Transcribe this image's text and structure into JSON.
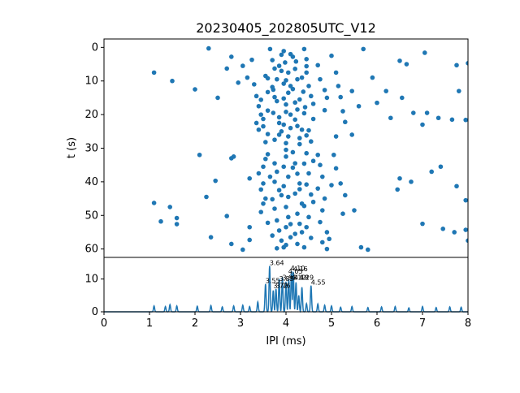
{
  "chart_data": [
    {
      "type": "scatter",
      "title": "20230405_202805UTC_V12",
      "xlabel": "",
      "ylabel": "t (s)",
      "xlim": [
        0,
        8
      ],
      "ylim": [
        62.5,
        -2.5
      ],
      "y_inverted": true,
      "yticks": [
        "0",
        "10",
        "20",
        "30",
        "40",
        "50",
        "60"
      ],
      "color": "#1f77b4",
      "points": [
        [
          1.1,
          7.5
        ],
        [
          1.5,
          10
        ],
        [
          2.0,
          12.5
        ],
        [
          2.3,
          0.3
        ],
        [
          2.5,
          15
        ],
        [
          2.7,
          6.3
        ],
        [
          2.8,
          2.8
        ],
        [
          2.95,
          10.5
        ],
        [
          3.05,
          5.5
        ],
        [
          3.15,
          9
        ],
        [
          3.25,
          3.7
        ],
        [
          3.3,
          11
        ],
        [
          3.35,
          14.5
        ],
        [
          3.4,
          17.5
        ],
        [
          3.45,
          20
        ],
        [
          3.35,
          22.5
        ],
        [
          3.4,
          24.5
        ],
        [
          3.5,
          21.3
        ],
        [
          3.55,
          8.5
        ],
        [
          3.6,
          13.3
        ],
        [
          3.7,
          3.8
        ],
        [
          3.75,
          6.3
        ],
        [
          3.8,
          9.5
        ],
        [
          3.72,
          12.6
        ],
        [
          3.8,
          16
        ],
        [
          3.72,
          19.5
        ],
        [
          3.85,
          22.5
        ],
        [
          3.9,
          25
        ],
        [
          3.75,
          27.5
        ],
        [
          3.95,
          1.1
        ],
        [
          3.98,
          4.5
        ],
        [
          4.05,
          7.5
        ],
        [
          3.95,
          10.8
        ],
        [
          4.05,
          13.5
        ],
        [
          4.0,
          17
        ],
        [
          4.1,
          20
        ],
        [
          3.95,
          23
        ],
        [
          4.05,
          26.5
        ],
        [
          4.15,
          2.8
        ],
        [
          4.2,
          6.4
        ],
        [
          4.25,
          9.5
        ],
        [
          4.15,
          12.4
        ],
        [
          4.3,
          15.5
        ],
        [
          4.25,
          18.5
        ],
        [
          4.2,
          21.5
        ],
        [
          4.35,
          24.5
        ],
        [
          4.3,
          27
        ],
        [
          4.4,
          0.5
        ],
        [
          4.45,
          3.5
        ],
        [
          4.45,
          7.5
        ],
        [
          4.5,
          11.5
        ],
        [
          4.55,
          14.5
        ],
        [
          4.42,
          17.8
        ],
        [
          4.6,
          21.3
        ],
        [
          4.5,
          24.7
        ],
        [
          4.55,
          28
        ],
        [
          4.7,
          5.3
        ],
        [
          4.75,
          9.5
        ],
        [
          4.85,
          12.7
        ],
        [
          4.9,
          15
        ],
        [
          4.85,
          18.7
        ],
        [
          5.0,
          2.5
        ],
        [
          5.1,
          7.5
        ],
        [
          5.15,
          11.5
        ],
        [
          5.2,
          14.8
        ],
        [
          5.25,
          19
        ],
        [
          5.3,
          22.2
        ],
        [
          5.1,
          26.5
        ],
        [
          5.45,
          13
        ],
        [
          5.6,
          17.5
        ],
        [
          5.45,
          26
        ],
        [
          5.7,
          0.5
        ],
        [
          5.9,
          9
        ],
        [
          6.0,
          16.5
        ],
        [
          6.2,
          13
        ],
        [
          6.3,
          21
        ],
        [
          6.5,
          4
        ],
        [
          6.55,
          15
        ],
        [
          6.65,
          5
        ],
        [
          6.8,
          19.5
        ],
        [
          7.0,
          23
        ],
        [
          7.05,
          1.6
        ],
        [
          7.1,
          19.5
        ],
        [
          7.35,
          21
        ],
        [
          7.65,
          21.5
        ],
        [
          7.75,
          5.3
        ],
        [
          7.8,
          13
        ],
        [
          7.95,
          21.6
        ],
        [
          8.0,
          4.7
        ],
        [
          3.65,
          0.5
        ],
        [
          3.9,
          2.2
        ],
        [
          4.1,
          2.0
        ],
        [
          3.85,
          5.5
        ],
        [
          4.22,
          4.2
        ],
        [
          3.6,
          9.2
        ],
        [
          4.0,
          9.8
        ],
        [
          4.35,
          9.0
        ],
        [
          3.7,
          11.8
        ],
        [
          4.1,
          11.5
        ],
        [
          4.38,
          13.2
        ],
        [
          3.45,
          15.6
        ],
        [
          3.95,
          15.2
        ],
        [
          4.2,
          16.4
        ],
        [
          4.6,
          16.8
        ],
        [
          3.6,
          18.8
        ],
        [
          4.0,
          19.2
        ],
        [
          4.4,
          19.6
        ],
        [
          3.5,
          23.5
        ],
        [
          3.85,
          20.8
        ],
        [
          4.25,
          23.4
        ],
        [
          3.6,
          25.8
        ],
        [
          4.45,
          26.2
        ],
        [
          4.0,
          28.5
        ],
        [
          3.55,
          28.2
        ],
        [
          4.3,
          28.8
        ],
        [
          3.9,
          7.0
        ],
        [
          4.45,
          5.6
        ],
        [
          3.75,
          14.8
        ],
        [
          4.1,
          24.0
        ],
        [
          3.85,
          26.0
        ],
        [
          2.1,
          32
        ],
        [
          2.8,
          33
        ],
        [
          2.85,
          32.5
        ],
        [
          2.45,
          39.7
        ],
        [
          3.2,
          39
        ],
        [
          2.25,
          44.5
        ],
        [
          1.1,
          46.3
        ],
        [
          1.25,
          51.8
        ],
        [
          1.45,
          47.5
        ],
        [
          1.6,
          50.8
        ],
        [
          1.6,
          52.6
        ],
        [
          2.35,
          56.5
        ],
        [
          2.7,
          50.2
        ],
        [
          2.8,
          58.5
        ],
        [
          3.05,
          60.2
        ],
        [
          3.2,
          57.3
        ],
        [
          3.2,
          53.5
        ],
        [
          3.45,
          49
        ],
        [
          3.4,
          37.5
        ],
        [
          3.5,
          35.5
        ],
        [
          3.5,
          40.5
        ],
        [
          3.45,
          42.3
        ],
        [
          3.55,
          45
        ],
        [
          3.5,
          46.5
        ],
        [
          3.6,
          31.8
        ],
        [
          3.75,
          34.5
        ],
        [
          3.8,
          37
        ],
        [
          3.75,
          40
        ],
        [
          3.85,
          42.5
        ],
        [
          3.7,
          45.2
        ],
        [
          3.75,
          48
        ],
        [
          3.8,
          51.5
        ],
        [
          3.85,
          54.5
        ],
        [
          3.9,
          57.5
        ],
        [
          3.8,
          59.8
        ],
        [
          4.0,
          32.5
        ],
        [
          3.95,
          35.5
        ],
        [
          4.05,
          38.5
        ],
        [
          3.95,
          41.3
        ],
        [
          4.05,
          44.5
        ],
        [
          4.0,
          47.5
        ],
        [
          4.05,
          50.5
        ],
        [
          4.0,
          53.5
        ],
        [
          4.1,
          56.5
        ],
        [
          3.95,
          59.5
        ],
        [
          4.15,
          31.2
        ],
        [
          4.2,
          34.5
        ],
        [
          4.25,
          37.6
        ],
        [
          4.3,
          40.5
        ],
        [
          4.2,
          43.5
        ],
        [
          4.35,
          46.5
        ],
        [
          4.25,
          49.5
        ],
        [
          4.3,
          52.5
        ],
        [
          4.2,
          55.5
        ],
        [
          4.25,
          58.5
        ],
        [
          4.45,
          31.5
        ],
        [
          4.4,
          34.6
        ],
        [
          4.5,
          37.5
        ],
        [
          4.45,
          40.8
        ],
        [
          4.55,
          43.8
        ],
        [
          4.4,
          47.2
        ],
        [
          4.5,
          50.5
        ],
        [
          4.45,
          53.5
        ],
        [
          4.55,
          56.7
        ],
        [
          4.4,
          59.5
        ],
        [
          4.7,
          32
        ],
        [
          4.75,
          35
        ],
        [
          4.8,
          38.5
        ],
        [
          4.7,
          42
        ],
        [
          4.85,
          45
        ],
        [
          4.8,
          48.5
        ],
        [
          4.75,
          52
        ],
        [
          4.9,
          55
        ],
        [
          4.8,
          58
        ],
        [
          4.95,
          57
        ],
        [
          5.0,
          41
        ],
        [
          5.05,
          32
        ],
        [
          5.1,
          36
        ],
        [
          5.2,
          40.5
        ],
        [
          5.3,
          44
        ],
        [
          5.25,
          49.5
        ],
        [
          4.9,
          60
        ],
        [
          5.5,
          48.5
        ],
        [
          5.65,
          59.5
        ],
        [
          5.8,
          60.2
        ],
        [
          6.45,
          42.3
        ],
        [
          6.5,
          39
        ],
        [
          6.75,
          40
        ],
        [
          7.0,
          52.5
        ],
        [
          7.2,
          37
        ],
        [
          7.4,
          35.5
        ],
        [
          7.45,
          54
        ],
        [
          7.7,
          55
        ],
        [
          7.75,
          41.3
        ],
        [
          7.95,
          45.5
        ],
        [
          8.0,
          57.5
        ],
        [
          7.95,
          54.3
        ],
        [
          3.6,
          52.2
        ],
        [
          4.1,
          52.6
        ],
        [
          4.35,
          55.0
        ],
        [
          3.7,
          56.0
        ],
        [
          4.0,
          58.8
        ],
        [
          4.6,
          46.0
        ],
        [
          3.9,
          44.0
        ],
        [
          4.3,
          42.2
        ],
        [
          3.65,
          38.5
        ],
        [
          4.15,
          35.8
        ],
        [
          3.55,
          33.2
        ],
        [
          4.6,
          33.8
        ],
        [
          4.0,
          30.5
        ]
      ]
    },
    {
      "type": "line",
      "title": "",
      "xlabel": "IPI (ms)",
      "ylabel": "",
      "xlim": [
        0,
        8
      ],
      "ylim": [
        0,
        16.6
      ],
      "xticks": [
        "0",
        "1",
        "2",
        "3",
        "4",
        "5",
        "6",
        "7",
        "8"
      ],
      "yticks": [
        "0",
        "10"
      ],
      "color": "#1f77b4",
      "peaks": [
        [
          1.1,
          1.8
        ],
        [
          1.35,
          1.6
        ],
        [
          1.45,
          2.2
        ],
        [
          1.6,
          1.8
        ],
        [
          2.05,
          1.7
        ],
        [
          2.35,
          1.9
        ],
        [
          2.6,
          1.5
        ],
        [
          2.85,
          1.8
        ],
        [
          3.05,
          2.0
        ],
        [
          3.2,
          1.6
        ],
        [
          3.38,
          3.0
        ],
        [
          3.55,
          8.5
        ],
        [
          3.64,
          14.0
        ],
        [
          3.72,
          6.5
        ],
        [
          3.78,
          7.0
        ],
        [
          3.85,
          10.0
        ],
        [
          3.92,
          10.5
        ],
        [
          4.0,
          9.2
        ],
        [
          4.06,
          10.0
        ],
        [
          4.12,
          12.4
        ],
        [
          4.16,
          12.2
        ],
        [
          4.22,
          9.0
        ],
        [
          4.28,
          5.0
        ],
        [
          4.35,
          7.5
        ],
        [
          4.45,
          2.5
        ],
        [
          4.55,
          8.0
        ],
        [
          4.7,
          2.4
        ],
        [
          4.85,
          2.0
        ],
        [
          5.0,
          1.8
        ],
        [
          5.2,
          1.4
        ],
        [
          5.45,
          1.6
        ],
        [
          5.8,
          1.3
        ],
        [
          6.1,
          1.5
        ],
        [
          6.4,
          1.6
        ],
        [
          6.7,
          1.2
        ],
        [
          7.0,
          1.6
        ],
        [
          7.3,
          1.3
        ],
        [
          7.6,
          1.5
        ],
        [
          7.85,
          1.4
        ]
      ],
      "annotations": [
        {
          "x": 3.64,
          "y": 14.0,
          "text": "3.64"
        },
        {
          "x": 4.1,
          "y": 12.4,
          "text": "4.10"
        },
        {
          "x": 4.16,
          "y": 12.2,
          "text": "4.16"
        },
        {
          "x": 4.05,
          "y": 11.4,
          "text": "4.05"
        },
        {
          "x": 3.55,
          "y": 8.5,
          "text": "3.55"
        },
        {
          "x": 3.85,
          "y": 9.2,
          "text": "3.85"
        },
        {
          "x": 3.92,
          "y": 9.5,
          "text": "3.93"
        },
        {
          "x": 3.72,
          "y": 7.0,
          "text": "3.72"
        },
        {
          "x": 3.78,
          "y": 7.0,
          "text": "3.76"
        },
        {
          "x": 4.12,
          "y": 9.5,
          "text": "4.12"
        },
        {
          "x": 4.18,
          "y": 9.5,
          "text": "4.18"
        },
        {
          "x": 4.29,
          "y": 9.5,
          "text": "4.29"
        },
        {
          "x": 4.55,
          "y": 8.0,
          "text": "4.55"
        }
      ]
    }
  ]
}
